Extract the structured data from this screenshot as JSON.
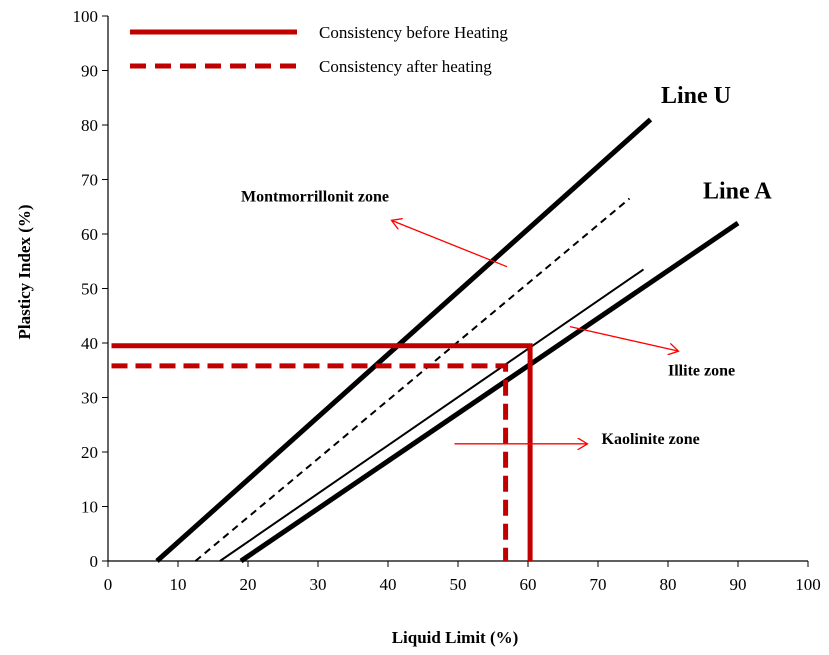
{
  "chart_data": {
    "type": "line",
    "xlabel": "Liquid Limit (%)",
    "ylabel": "Plasticy Index (%)",
    "xlim": [
      0,
      100
    ],
    "ylim": [
      0,
      100
    ],
    "x_ticks": [
      0,
      10,
      20,
      30,
      40,
      50,
      60,
      70,
      80,
      90,
      100
    ],
    "y_ticks": [
      0,
      10,
      20,
      30,
      40,
      50,
      60,
      70,
      80,
      90,
      100
    ],
    "grid": false,
    "legend_position": "top-left",
    "colors": {
      "consistency": "#c00000",
      "reference": "#000000",
      "arrow": "#ff0000"
    },
    "legend": [
      {
        "name": "Consistency before Heating",
        "style": "solid"
      },
      {
        "name": "Consistency after heating",
        "style": "dashed"
      }
    ],
    "series": [
      {
        "name": "Line U",
        "style": "thick",
        "points": [
          [
            7,
            0
          ],
          [
            77.5,
            81
          ]
        ]
      },
      {
        "name": "Line A",
        "style": "thick",
        "points": [
          [
            19,
            0
          ],
          [
            90,
            62
          ]
        ]
      },
      {
        "style": "thin-dashed",
        "points": [
          [
            12.5,
            0
          ],
          [
            74.5,
            66.5
          ]
        ]
      },
      {
        "style": "thin",
        "points": [
          [
            16,
            0
          ],
          [
            76.5,
            53.5
          ]
        ]
      },
      {
        "name": "Consistency before Heating",
        "style": "solid",
        "points": [
          [
            0.5,
            39.5
          ],
          [
            60.3,
            39.5
          ],
          [
            60.3,
            0
          ]
        ]
      },
      {
        "name": "Consistency after heating",
        "style": "dashed",
        "points": [
          [
            0.5,
            35.8
          ],
          [
            56.8,
            35.8
          ],
          [
            56.8,
            0
          ]
        ]
      }
    ],
    "line_labels": [
      {
        "text": "Line U",
        "at": [
          79,
          84
        ]
      },
      {
        "text": "Line A",
        "at": [
          85,
          66.5
        ]
      }
    ],
    "zones": [
      {
        "text": "Montmorrillonit zone",
        "label_at": [
          19,
          66
        ],
        "arrow_from": [
          57,
          54
        ],
        "arrow_to": [
          40.5,
          62.5
        ]
      },
      {
        "text": "Illite zone",
        "label_at": [
          80,
          34
        ],
        "arrow_from": [
          66,
          43
        ],
        "arrow_to": [
          81.5,
          38.5
        ]
      },
      {
        "text": "Kaolinite zone",
        "label_at": [
          70.5,
          21.5
        ],
        "arrow_from": [
          49.5,
          21.5
        ],
        "arrow_to": [
          68.5,
          21.5
        ]
      }
    ]
  }
}
